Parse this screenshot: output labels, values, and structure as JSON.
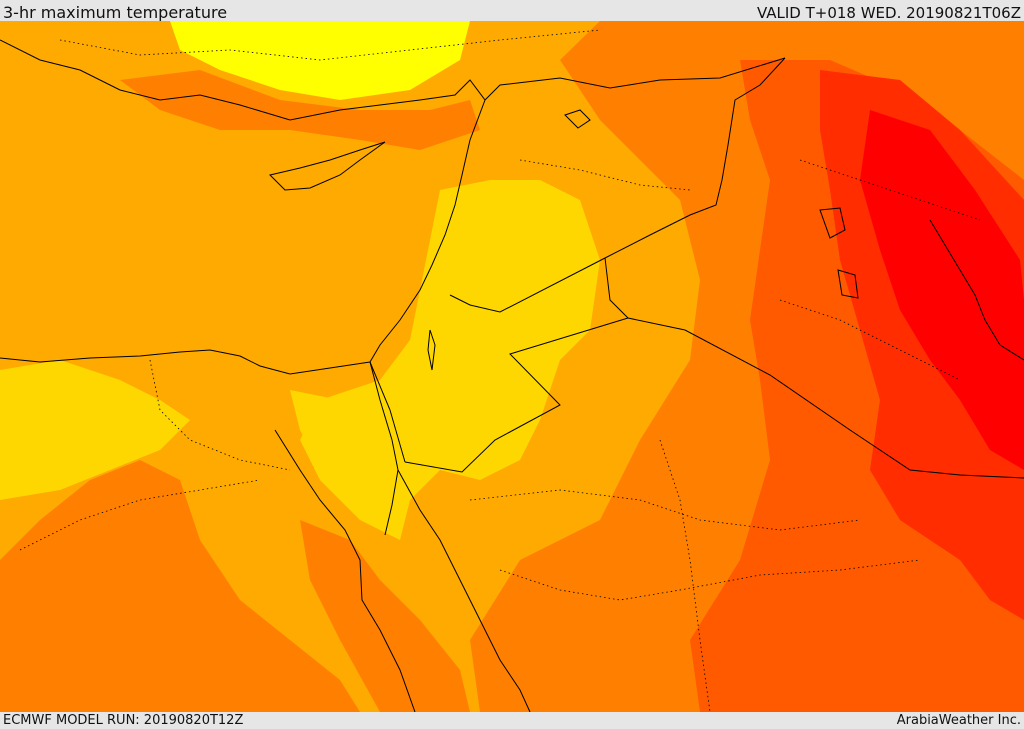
{
  "header": {
    "title": "3-hr maximum temperature",
    "valid": "VALID T+018 WED. 20190821T06Z"
  },
  "footer": {
    "model_run": "ECMWF MODEL RUN: 20190820T12Z",
    "credit": "ArabiaWeather Inc."
  },
  "map": {
    "region": "Eastern Mediterranean and Middle East",
    "colors": {
      "level_1": "#ffff00",
      "level_2": "#ffd700",
      "level_3": "#ffaa00",
      "level_4": "#ff8000",
      "level_5": "#ff5a00",
      "level_6": "#ff2d00",
      "level_7": "#ff0000",
      "coast": "#000000",
      "border": "#000000"
    }
  }
}
